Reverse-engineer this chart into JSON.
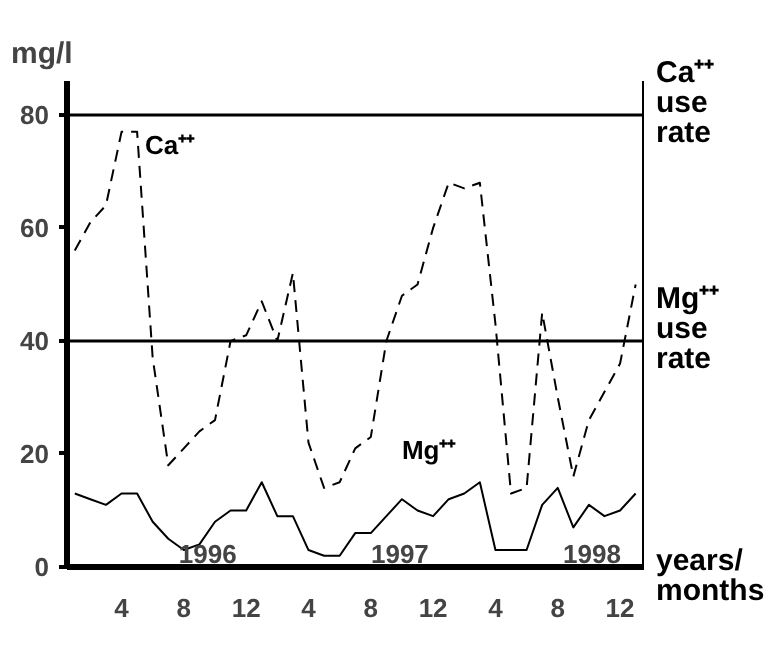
{
  "chart_data": {
    "type": "line",
    "ylabel": "mg/l",
    "xlabel": "years/\nmonths",
    "categories": [
      null,
      null,
      null,
      "4",
      null,
      null,
      null,
      "8",
      null,
      null,
      null,
      "12",
      null,
      null,
      null,
      "4",
      null,
      null,
      null,
      "8",
      null,
      null,
      null,
      "12",
      null,
      null,
      null,
      "4",
      null,
      null,
      null,
      "8",
      null,
      null,
      null,
      "12",
      null
    ],
    "series": [
      {
        "name": "Ca⁺⁺",
        "color": "#000000",
        "line_style": "dashed",
        "values": [
          56,
          61,
          64,
          77,
          77,
          37,
          18,
          21,
          24,
          26,
          40,
          41,
          47,
          40,
          52,
          22,
          14,
          15,
          21,
          23,
          40,
          48,
          50,
          60,
          68,
          67,
          68,
          43,
          13,
          14,
          45,
          30,
          16,
          26,
          31,
          36,
          50
        ]
      },
      {
        "name": "Mg⁺⁺",
        "color": "#000000",
        "line_style": "solid",
        "values": [
          13,
          12,
          11,
          13,
          13,
          8,
          5,
          3,
          4,
          8,
          10,
          10,
          15,
          9,
          9,
          3,
          2,
          2,
          6,
          6,
          9,
          12,
          10,
          9,
          12,
          13,
          15,
          3,
          3,
          3,
          11,
          14,
          7,
          11,
          9,
          10,
          13
        ]
      }
    ],
    "ylim": [
      0,
      86
    ],
    "yticks": [
      0,
      20,
      40,
      60,
      80
    ],
    "ref_lines": [
      {
        "axis": "y",
        "value": 80,
        "label": "Ca⁺⁺\nuse\nrate",
        "color": "#000000"
      },
      {
        "axis": "y",
        "value": 40,
        "label": "Mg⁺⁺\nuse\nrate",
        "color": "#000000"
      }
    ],
    "annotations": [
      "1996",
      "1997",
      "1998"
    ],
    "grid": false
  }
}
